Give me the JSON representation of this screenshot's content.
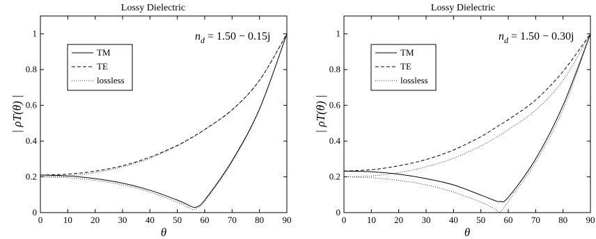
{
  "chart_data": [
    {
      "type": "line",
      "title": "Lossy Dielectric",
      "xlabel": "θ",
      "ylabel": "| ρT(θ) |",
      "annotation": {
        "lead": "n",
        "sub": "d",
        "rest": " = 1.50 − 0.15j"
      },
      "xlim": [
        0,
        90
      ],
      "ylim": [
        0,
        1.1
      ],
      "xticks": [
        "0",
        "10",
        "20",
        "30",
        "40",
        "50",
        "60",
        "70",
        "80",
        "90"
      ],
      "yticks": [
        "0",
        "0.2",
        "0.4",
        "0.6",
        "0.8",
        "1"
      ],
      "grid": false,
      "legend_position": "top-left",
      "x": [
        0,
        10,
        20,
        30,
        40,
        50,
        55,
        56,
        57,
        60,
        70,
        80,
        90
      ],
      "series": [
        {
          "name": "TM",
          "style": "solid",
          "values": [
            0.21,
            0.205,
            0.19,
            0.165,
            0.125,
            0.07,
            0.035,
            0.03,
            0.032,
            0.07,
            0.29,
            0.58,
            1.0
          ]
        },
        {
          "name": "TE",
          "style": "dashed",
          "values": [
            0.21,
            0.215,
            0.232,
            0.262,
            0.31,
            0.376,
            0.418,
            0.427,
            0.436,
            0.465,
            0.575,
            0.74,
            1.0
          ]
        },
        {
          "name": "lossless",
          "style": "dotted",
          "values": [
            0.2,
            0.195,
            0.18,
            0.155,
            0.115,
            0.058,
            0.022,
            0.018,
            0.024,
            0.063,
            0.283,
            0.577,
            1.0
          ]
        },
        {
          "name": "",
          "style": "dotted",
          "values": [
            0.2,
            0.205,
            0.224,
            0.256,
            0.304,
            0.373,
            0.416,
            0.425,
            0.434,
            0.464,
            0.573,
            0.74,
            1.0
          ]
        }
      ]
    },
    {
      "type": "line",
      "title": "Lossy Dielectric",
      "xlabel": "θ",
      "ylabel": "| ρT(θ) |",
      "annotation": {
        "lead": "n",
        "sub": "d",
        "rest": " = 1.50 − 0.30j"
      },
      "xlim": [
        0,
        90
      ],
      "ylim": [
        0,
        1.1
      ],
      "xticks": [
        "0",
        "10",
        "20",
        "30",
        "40",
        "50",
        "60",
        "70",
        "80",
        "90"
      ],
      "yticks": [
        "0",
        "0.2",
        "0.4",
        "0.6",
        "0.8",
        "1"
      ],
      "grid": false,
      "legend_position": "top-left",
      "x": [
        0,
        10,
        20,
        30,
        40,
        50,
        55,
        57,
        60,
        70,
        80,
        90
      ],
      "series": [
        {
          "name": "TM",
          "style": "solid",
          "values": [
            0.232,
            0.228,
            0.215,
            0.19,
            0.155,
            0.098,
            0.068,
            0.062,
            0.085,
            0.3,
            0.6,
            1.0
          ]
        },
        {
          "name": "TE",
          "style": "dashed",
          "values": [
            0.232,
            0.24,
            0.262,
            0.297,
            0.35,
            0.425,
            0.472,
            0.492,
            0.52,
            0.63,
            0.79,
            1.0
          ]
        },
        {
          "name": "lossless",
          "style": "dotted",
          "values": [
            0.2,
            0.195,
            0.18,
            0.155,
            0.115,
            0.058,
            0.022,
            0.004,
            0.063,
            0.283,
            0.577,
            1.0
          ]
        },
        {
          "name": "",
          "style": "dotted",
          "values": [
            0.2,
            0.205,
            0.224,
            0.256,
            0.304,
            0.373,
            0.416,
            0.434,
            0.464,
            0.573,
            0.74,
            1.0
          ]
        }
      ]
    }
  ]
}
